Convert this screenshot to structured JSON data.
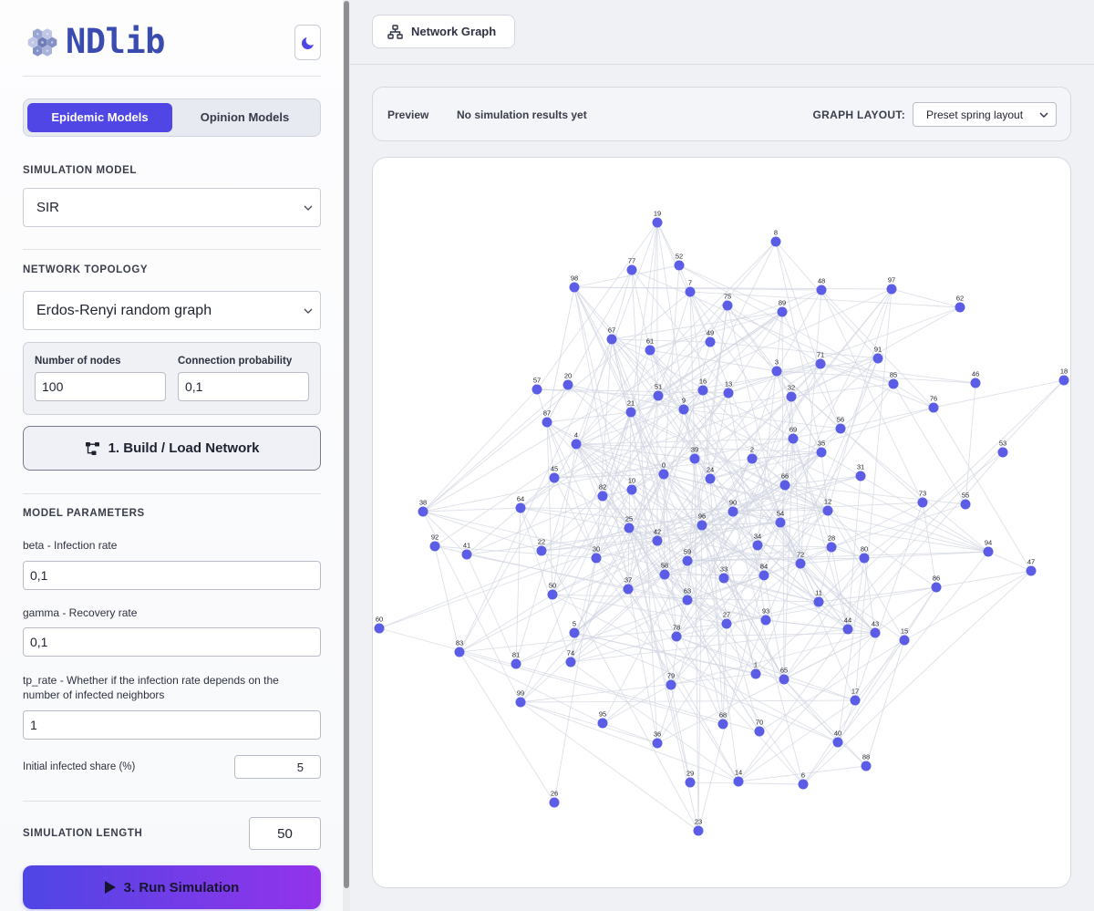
{
  "app": {
    "logo_text": "NDlib",
    "logo_icon": "hexagon-cluster-logo"
  },
  "colors": {
    "accent": "#4f46e5",
    "run_gradient_end": "#9333ea",
    "node": "#5b5de6",
    "edge": "#d2d6e1"
  },
  "sidebar": {
    "theme_toggle_icon": "moon-icon",
    "tabs": [
      {
        "label": "Epidemic Models",
        "active": true
      },
      {
        "label": "Opinion Models",
        "active": false
      }
    ],
    "simulation_model": {
      "heading": "SIMULATION MODEL",
      "selected": "SIR"
    },
    "network_topology": {
      "heading": "NETWORK TOPOLOGY",
      "selected": "Erdos-Renyi random graph",
      "params": [
        {
          "label": "Number of nodes",
          "value": "100"
        },
        {
          "label": "Connection probability",
          "value": "0,1"
        }
      ]
    },
    "build_button": {
      "label": "1. Build / Load Network",
      "icon": "network-icon"
    },
    "model_parameters": {
      "heading": "MODEL PARAMETERS",
      "fields": [
        {
          "label": "beta - Infection rate",
          "value": "0,1"
        },
        {
          "label": "gamma - Recovery rate",
          "value": "0,1"
        },
        {
          "label": "tp_rate - Whether if the infection rate depends on the number of infected neighbors",
          "value": "1"
        }
      ],
      "initial_infected": {
        "label": "Initial infected share (%)",
        "value": "5"
      }
    },
    "simulation_length": {
      "heading": "SIMULATION LENGTH",
      "value": "50"
    },
    "run_button": {
      "label": "3. Run Simulation",
      "icon": "play-icon"
    }
  },
  "main": {
    "view_tab": {
      "label": "Network Graph",
      "icon": "sitemap-icon"
    },
    "preview": {
      "label": "Preview",
      "status": "No simulation results yet",
      "layout_label": "GRAPH LAYOUT:",
      "layout_selected": "Preset spring layout"
    },
    "graph": {
      "nodes": [
        "0",
        "1",
        "2",
        "3",
        "4",
        "5",
        "6",
        "7",
        "8",
        "9",
        "10",
        "11",
        "12",
        "13",
        "14",
        "15",
        "16",
        "17",
        "18",
        "19",
        "20",
        "21",
        "22",
        "23",
        "24",
        "25",
        "26",
        "27",
        "28",
        "29",
        "30",
        "31",
        "32",
        "33",
        "34",
        "35",
        "36",
        "37",
        "38",
        "39",
        "40",
        "41",
        "42",
        "43",
        "44",
        "45",
        "46",
        "47",
        "48",
        "49",
        "50",
        "51",
        "52",
        "53",
        "54",
        "55",
        "56",
        "57",
        "58",
        "59",
        "60",
        "61",
        "62",
        "63",
        "64",
        "65",
        "66",
        "67",
        "68",
        "69",
        "70",
        "71",
        "72",
        "73",
        "74",
        "75",
        "76",
        "77",
        "78",
        "79",
        "80",
        "81",
        "82",
        "83",
        "84",
        "85",
        "86",
        "87",
        "88",
        "89",
        "90",
        "91",
        "92",
        "93",
        "94",
        "95",
        "96",
        "97",
        "98",
        "99"
      ]
    }
  }
}
